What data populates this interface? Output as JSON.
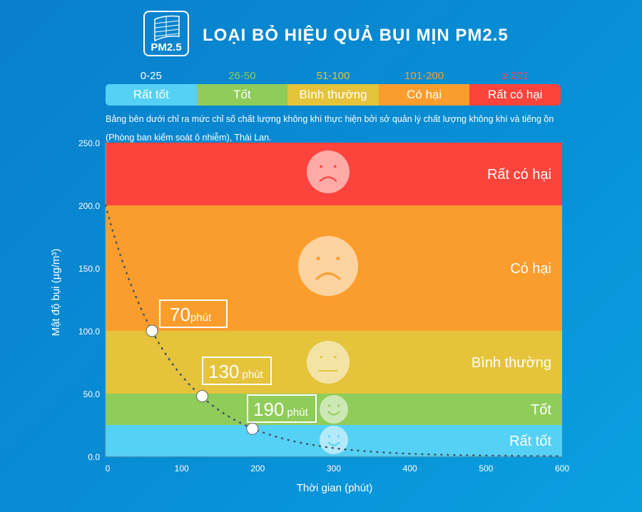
{
  "header": {
    "title": "LOẠI BỎ HIỆU QUẢ BỤI MỊN PM2.5",
    "logo_text": "PM2.5",
    "logo_icon": "filter-icon"
  },
  "scale": [
    {
      "range": "0-25",
      "label": "Rất tốt",
      "color": "#55d1f5",
      "range_color": "#ffffff"
    },
    {
      "range": "26-50",
      "label": "Tốt",
      "color": "#8fcc5a",
      "range_color": "#8fcc5a"
    },
    {
      "range": "51-100",
      "label": "Bình thường",
      "color": "#e5c33a",
      "range_color": "#e5c33a"
    },
    {
      "range": "101-200",
      "label": "Có hại",
      "color": "#fb9d2d",
      "range_color": "#fb9d2d"
    },
    {
      "range": "≥ 201",
      "label": "Rất có hại",
      "color": "#fc443c",
      "range_color": "#fc443c"
    }
  ],
  "note_line1": "Bảng bên dưới chỉ ra mức chỉ số chất lượng không khí thực hiện bởi sở quản lý chất lượng không khí và tiếng ồn",
  "note_line2": "(Phòng ban kiểm soát ô nhiễm), Thái Lan.",
  "chart_data": {
    "type": "line",
    "xlabel": "Thời gian (phút)",
    "ylabel": "Mật độ bụi (µg/m³)",
    "xlim": [
      0,
      600
    ],
    "ylim": [
      0,
      250
    ],
    "xticks": [
      "0",
      "100",
      "200",
      "300",
      "400",
      "500",
      "600"
    ],
    "yticks": [
      "0.0",
      "50.0",
      "100.0",
      "150.0",
      "200.0",
      "250.0"
    ],
    "bands": [
      {
        "from": 0,
        "to": 25,
        "label": "Rất tốt",
        "color": "#55d1f5",
        "face": "smile"
      },
      {
        "from": 25,
        "to": 50,
        "label": "Tốt",
        "color": "#8fcc5a",
        "face": "smile"
      },
      {
        "from": 50,
        "to": 100,
        "label": "Bình thường",
        "color": "#e5c33a",
        "face": "neutral"
      },
      {
        "from": 100,
        "to": 200,
        "label": "Có hại",
        "color": "#fb9d2d",
        "face": "frown"
      },
      {
        "from": 200,
        "to": 250,
        "label": "Rất có hại",
        "color": "#fc443c",
        "face": "frown"
      }
    ],
    "series": [
      {
        "x": [
          0,
          30,
          60,
          90,
          120,
          150,
          180,
          210,
          240,
          270,
          300,
          330,
          360,
          390,
          420,
          450,
          480,
          510,
          540,
          570,
          600
        ],
        "y": [
          200,
          142.3,
          101.2,
          72,
          51.2,
          36.4,
          25.9,
          18.4,
          13.1,
          9.3,
          6.6,
          4.7,
          3.4,
          2.4,
          1.7,
          1.2,
          0.9,
          0.6,
          0.4,
          0.3,
          0.2
        ]
      }
    ],
    "markers": [
      {
        "x": 61,
        "y": 100,
        "num": "70",
        "unit": "phút"
      },
      {
        "x": 127,
        "y": 48,
        "num": "130",
        "unit": "phút"
      },
      {
        "x": 193,
        "y": 22,
        "num": "190",
        "unit": "phút"
      }
    ]
  }
}
